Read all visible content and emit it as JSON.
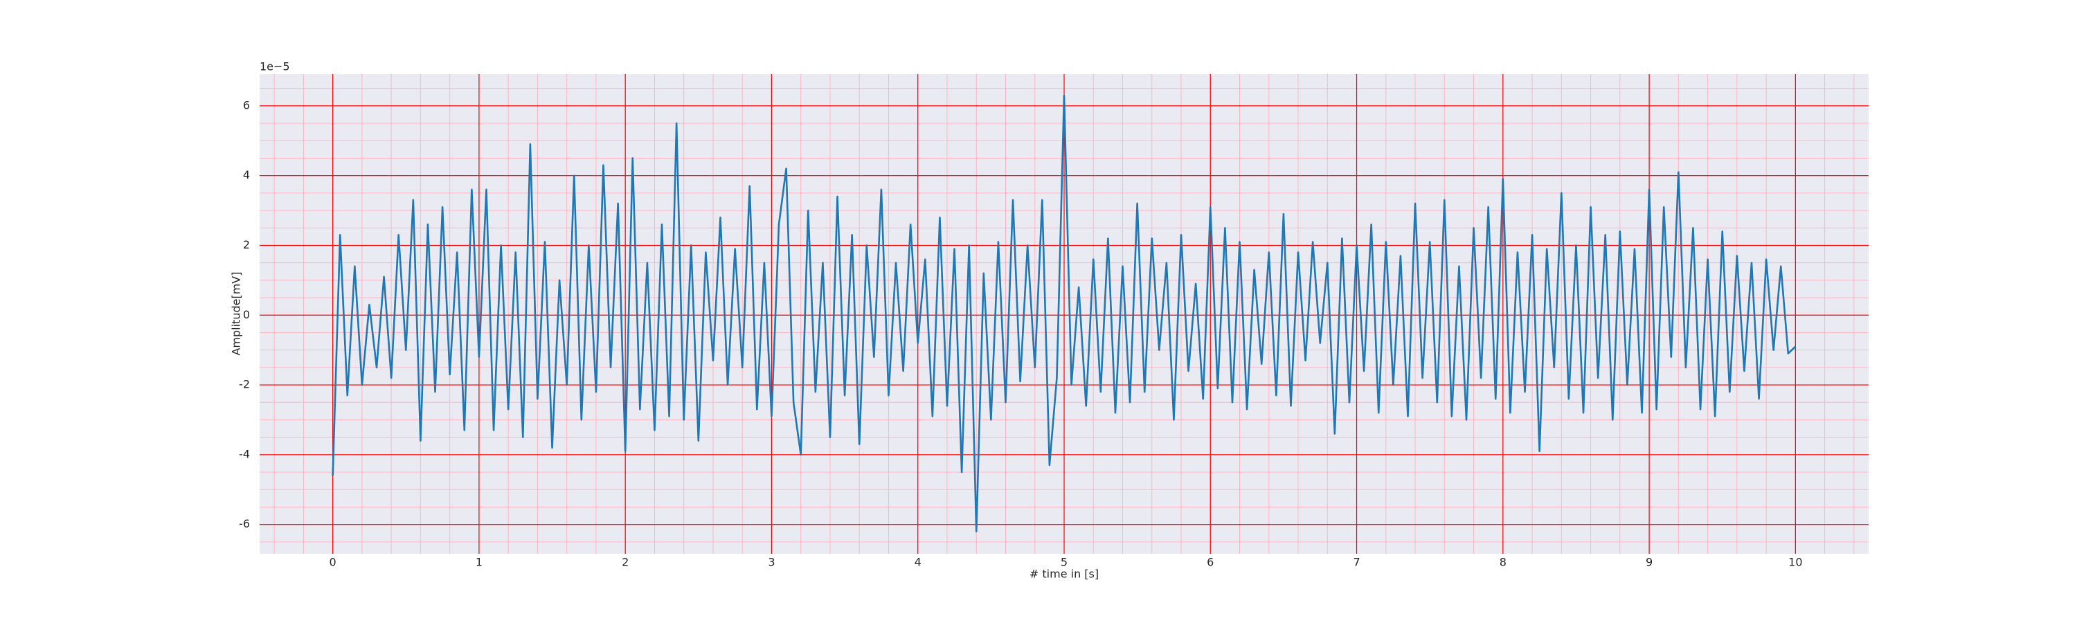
{
  "chart_data": {
    "type": "line",
    "offset_label": "1e−5",
    "xlabel": "# time in [s]",
    "ylabel": "Amplitude[mV]",
    "color": "#1f77b4",
    "background": "#eaeaf2",
    "grid": true,
    "grid_color": "#ff0000",
    "minor_grid": true,
    "minor_grid_color": "#ffb6c1",
    "xlim": [
      -0.5,
      10.5
    ],
    "ylim": [
      -6.84,
      6.91
    ],
    "xticks": [
      0,
      1,
      2,
      3,
      4,
      5,
      6,
      7,
      8,
      9,
      10
    ],
    "yticks": [
      -6,
      -4,
      -2,
      0,
      2,
      4,
      6
    ],
    "x": [
      0,
      0.05,
      0.1,
      0.15,
      0.2,
      0.25,
      0.3,
      0.35,
      0.4,
      0.45,
      0.5,
      0.55,
      0.6,
      0.65,
      0.7,
      0.75,
      0.8,
      0.85,
      0.9,
      0.95,
      1,
      1.05,
      1.1,
      1.15,
      1.2,
      1.25,
      1.3,
      1.35,
      1.4,
      1.45,
      1.5,
      1.55,
      1.6,
      1.65,
      1.7,
      1.75,
      1.8,
      1.85,
      1.9,
      1.95,
      2,
      2.05,
      2.1,
      2.15,
      2.2,
      2.25,
      2.3,
      2.35,
      2.4,
      2.45,
      2.5,
      2.55,
      2.6,
      2.65,
      2.7,
      2.75,
      2.8,
      2.85,
      2.9,
      2.95,
      3,
      3.05,
      3.1,
      3.15,
      3.2,
      3.25,
      3.3,
      3.35,
      3.4,
      3.45,
      3.5,
      3.55,
      3.6,
      3.65,
      3.7,
      3.75,
      3.8,
      3.85,
      3.9,
      3.95,
      4,
      4.05,
      4.1,
      4.15,
      4.2,
      4.25,
      4.3,
      4.35,
      4.4,
      4.45,
      4.5,
      4.55,
      4.6,
      4.65,
      4.7,
      4.75,
      4.8,
      4.85,
      4.9,
      4.95,
      5,
      5.05,
      5.1,
      5.15,
      5.2,
      5.25,
      5.3,
      5.35,
      5.4,
      5.45,
      5.5,
      5.55,
      5.6,
      5.65,
      5.7,
      5.75,
      5.8,
      5.85,
      5.9,
      5.95,
      6,
      6.05,
      6.1,
      6.15,
      6.2,
      6.25,
      6.3,
      6.35,
      6.4,
      6.45,
      6.5,
      6.55,
      6.6,
      6.65,
      6.7,
      6.75,
      6.8,
      6.85,
      6.9,
      6.95,
      7,
      7.05,
      7.1,
      7.15,
      7.2,
      7.25,
      7.3,
      7.35,
      7.4,
      7.45,
      7.5,
      7.55,
      7.6,
      7.65,
      7.7,
      7.75,
      7.8,
      7.85,
      7.9,
      7.95,
      8,
      8.05,
      8.1,
      8.15,
      8.2,
      8.25,
      8.3,
      8.35,
      8.4,
      8.45,
      8.5,
      8.55,
      8.6,
      8.65,
      8.7,
      8.75,
      8.8,
      8.85,
      8.9,
      8.95,
      9,
      9.05,
      9.1,
      9.15,
      9.2,
      9.25,
      9.3,
      9.35,
      9.4,
      9.45,
      9.5,
      9.55,
      9.6,
      9.65,
      9.7,
      9.75,
      9.8,
      9.85,
      9.9,
      9.95,
      10
    ],
    "values": [
      -4.6,
      2.3,
      -2.3,
      1.4,
      -2.0,
      0.3,
      -1.5,
      1.1,
      -1.8,
      2.3,
      -1.0,
      3.3,
      -3.6,
      2.6,
      -2.2,
      3.1,
      -1.7,
      1.8,
      -3.3,
      3.6,
      -1.2,
      3.6,
      -3.3,
      2.0,
      -2.7,
      1.8,
      -3.5,
      4.9,
      -2.4,
      2.1,
      -3.8,
      1.0,
      -2.0,
      4.0,
      -3.0,
      2.0,
      -2.2,
      4.3,
      -1.5,
      3.2,
      -3.9,
      4.5,
      -2.7,
      1.5,
      -3.3,
      2.6,
      -2.9,
      5.5,
      -3.0,
      2.0,
      -3.6,
      1.8,
      -1.3,
      2.8,
      -2.0,
      1.9,
      -1.5,
      3.7,
      -2.7,
      1.5,
      -2.9,
      2.6,
      4.2,
      -2.5,
      -4.0,
      3.0,
      -2.2,
      1.5,
      -3.5,
      3.4,
      -2.3,
      2.3,
      -3.7,
      2.0,
      -1.2,
      3.6,
      -2.3,
      1.5,
      -1.6,
      2.6,
      -0.8,
      1.6,
      -2.9,
      2.8,
      -2.6,
      1.9,
      -4.5,
      2.0,
      -6.2,
      1.2,
      -3.0,
      2.1,
      -2.5,
      3.3,
      -1.9,
      2.0,
      -1.5,
      3.3,
      -4.3,
      -1.8,
      6.3,
      -2.0,
      0.8,
      -2.6,
      1.6,
      -2.2,
      2.2,
      -2.8,
      1.4,
      -2.5,
      3.2,
      -2.2,
      2.2,
      -1.0,
      1.5,
      -3.0,
      2.3,
      -1.6,
      0.9,
      -2.4,
      3.1,
      -2.1,
      2.5,
      -2.5,
      2.1,
      -2.7,
      1.3,
      -1.4,
      1.8,
      -2.3,
      2.9,
      -2.6,
      1.8,
      -1.3,
      2.1,
      -0.8,
      1.5,
      -3.4,
      2.2,
      -2.5,
      2.0,
      -1.6,
      2.6,
      -2.8,
      2.1,
      -2.0,
      1.7,
      -2.9,
      3.2,
      -1.8,
      2.1,
      -2.5,
      3.3,
      -2.9,
      1.4,
      -3.0,
      2.5,
      -1.8,
      3.1,
      -2.4,
      3.9,
      -2.8,
      1.8,
      -2.2,
      2.3,
      -3.9,
      1.9,
      -1.5,
      3.5,
      -2.4,
      2.0,
      -2.8,
      3.1,
      -1.8,
      2.3,
      -3.0,
      2.4,
      -2.0,
      1.9,
      -2.8,
      3.6,
      -2.7,
      3.1,
      -1.2,
      4.1,
      -1.5,
      2.5,
      -2.7,
      1.6,
      -2.9,
      2.4,
      -2.2,
      1.7,
      -1.6,
      1.5,
      -2.4,
      1.6,
      -1.0,
      1.4,
      -1.1,
      -0.9
    ]
  }
}
